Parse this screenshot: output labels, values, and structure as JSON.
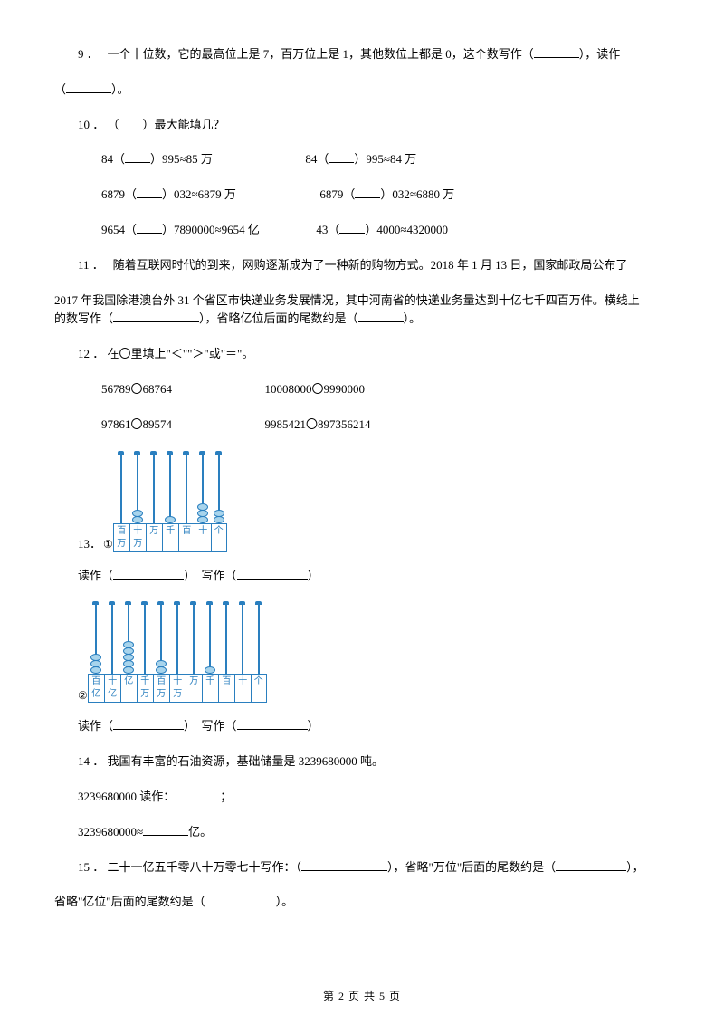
{
  "q9": {
    "num": "9",
    "sep": "．",
    "text_a": "一个十位数，它的最高位上是 7，百万位上是 1，其他数位上都是 0，这个数写作（",
    "text_b": "），读作",
    "text_c": "（",
    "text_d": "）。"
  },
  "q10": {
    "num": "10",
    "sep": "．",
    "title": "（　　）最大能填几？",
    "r1a": "84（",
    "r1b": "）995≈85 万",
    "r1c": "84（",
    "r1d": "）995≈84 万",
    "r2a": "6879（",
    "r2b": "）032≈6879 万",
    "r2c": "6879（",
    "r2d": "）032≈6880 万",
    "r3a": "9654（",
    "r3b": "）7890000≈9654 亿",
    "r3c": "43（",
    "r3d": "）4000≈4320000"
  },
  "q11": {
    "num": "11",
    "sep": "．",
    "text_a": "随着互联网时代的到来，网购逐渐成为了一种新的购物方式。2018 年 1 月 13 日，国家邮政局公布了",
    "text_b": "2017 年我国除港澳台外 31 个省区市快递业务发展情况，其中河南省的快递业务量达到十亿七千四百万件。横线上",
    "text_c": "的数写作（",
    "text_d": "），省略亿位后面的尾数约是（",
    "text_e": "）。"
  },
  "q12": {
    "num": "12",
    "sep": "．",
    "title": "在〇里填上\"＜\"\"＞\"或\"＝\"。",
    "r1a": "56789〇68764",
    "r1b": "10008000〇9990000",
    "r2a": "97861〇89574",
    "r2b": "9985421〇897356214"
  },
  "q13": {
    "num": "13",
    "sep": "．",
    "circ1": "①",
    "circ2": "②",
    "read_label": "读作（",
    "write_label": "）　写作（",
    "close": "）",
    "abacus1": {
      "labels": [
        "百万",
        "十万",
        "万",
        "千",
        "百",
        "十",
        "个"
      ],
      "beads": [
        0,
        2,
        0,
        1,
        0,
        3,
        2
      ]
    },
    "abacus2": {
      "labels": [
        "百亿",
        "十亿",
        "亿",
        "千万",
        "百万",
        "十万",
        "万",
        "千",
        "百",
        "十",
        "个"
      ],
      "beads": [
        3,
        0,
        5,
        0,
        2,
        0,
        0,
        1,
        0,
        0,
        0
      ]
    },
    "colors": {
      "line": "#2a7fbf",
      "bead_fill": "#a8d4ec"
    }
  },
  "q14": {
    "num": "14",
    "sep": "．",
    "text_a": "我国有丰富的石油资源，基础储量是 3239680000 吨。",
    "line1a": "3239680000 读作：",
    "line1b": "；",
    "line2a": "3239680000≈",
    "line2b": "亿。"
  },
  "q15": {
    "num": "15",
    "sep": "．",
    "text_a": "二十一亿五千零八十万零七十写作：（",
    "text_b": "），省略\"万位\"后面的尾数约是（",
    "text_c": "），",
    "text_d": "省略\"亿位\"后面的尾数约是（",
    "text_e": "）。"
  },
  "footer": "第 2 页 共 5 页"
}
